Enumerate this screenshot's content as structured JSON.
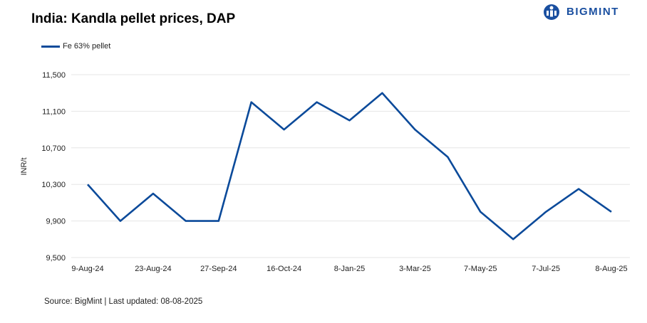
{
  "header": {
    "title": "India: Kandla pellet prices, DAP",
    "brand": "BIGMINT"
  },
  "footer": {
    "source": "Source: BigMint | Last updated: 08-08-2025"
  },
  "colors": {
    "series": "#0b4a9a",
    "grid": "#e6e6e6",
    "brand": "#1a4fa0"
  },
  "chart_data": {
    "type": "line",
    "title": "India: Kandla pellet prices, DAP",
    "ylabel": "INR/t",
    "xlabel": "",
    "ylim": [
      9500,
      11500
    ],
    "yticks": [
      9500,
      9900,
      10300,
      10700,
      11100,
      11500
    ],
    "ytick_labels": [
      "9,500",
      "9,900",
      "10,300",
      "10,700",
      "11,100",
      "11,500"
    ],
    "xtick_labels": [
      "9-Aug-24",
      "23-Aug-24",
      "27-Sep-24",
      "16-Oct-24",
      "8-Jan-25",
      "3-Mar-25",
      "7-May-25",
      "7-Jul-25",
      "8-Aug-25"
    ],
    "grid": true,
    "legend_position": "top-left",
    "series": [
      {
        "name": "Fe 63% pellet",
        "values": [
          10300,
          9900,
          10200,
          9900,
          9900,
          11200,
          10900,
          11200,
          11000,
          11300,
          10900,
          10600,
          10000,
          9700,
          10000,
          10250,
          10000
        ]
      }
    ]
  }
}
